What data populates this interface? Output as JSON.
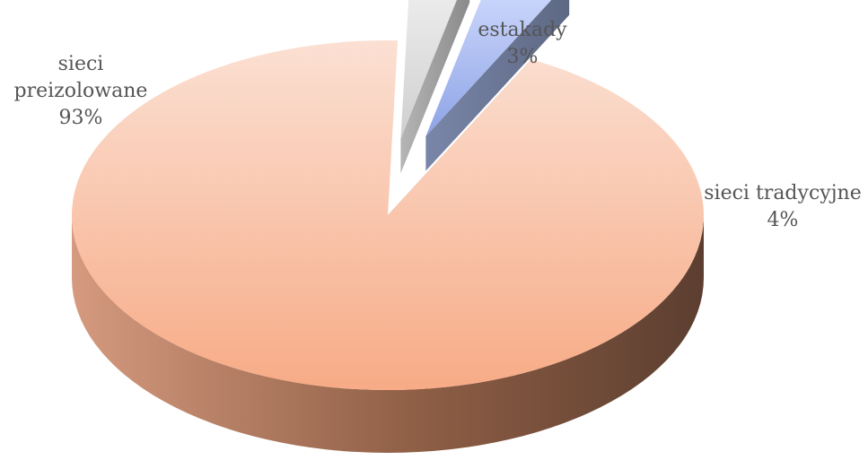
{
  "chart_data": {
    "type": "pie",
    "style": "3d-exploded",
    "title": "",
    "slices": [
      {
        "label": "sieci preizolowane",
        "value": 93,
        "value_label": "93%",
        "label_lines": [
          "sieci",
          "preizolowane"
        ],
        "color": "#f7b99a"
      },
      {
        "label": "estakady",
        "value": 3,
        "value_label": "3%",
        "label_lines": [
          "estakady"
        ],
        "color": "#e2e2e2"
      },
      {
        "label": "sieci tradycyjne",
        "value": 4,
        "value_label": "4%",
        "label_lines": [
          "sieci tradycyjne"
        ],
        "color": "#a9b9ee"
      }
    ],
    "legend": "none"
  }
}
